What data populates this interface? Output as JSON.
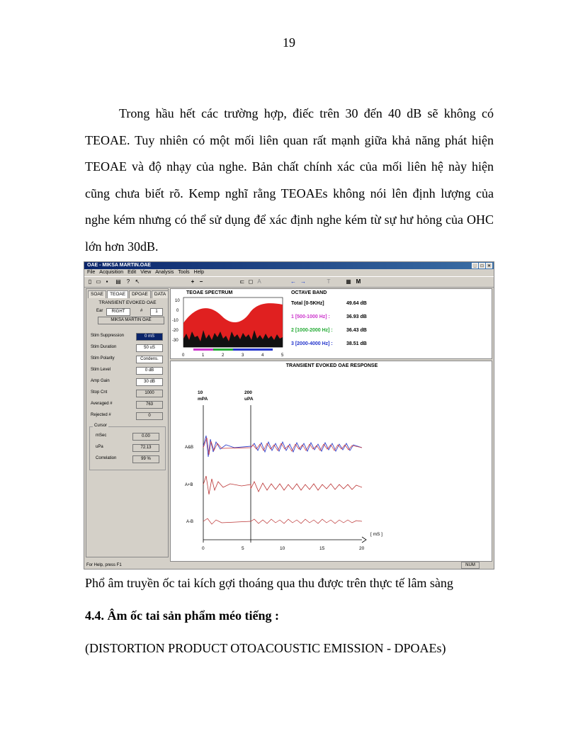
{
  "page_number": "19",
  "paragraph": "Trong hầu hết các trường hợp, điếc trên 30 đến 40 dB sẽ không có TEOAE. Tuy nhiên có một mối liên quan rất mạnh giữa khả năng phát hiện TEOAE và độ nhạy của nghe. Bản chất chính xác của mối liên hệ này hiện cũng chưa biết rõ. Kemp nghĩ rằng TEOAEs không nói lên định lượng của nghe kém nhưng có thể sử dụng để xác định nghe kém từ sự hư hỏng của OHC lớn hơn 30dB.",
  "screenshot": {
    "window_title": "OAE - MIKSA MARTIN.OAE",
    "menu": [
      "File",
      "Acquisition",
      "Edit",
      "View",
      "Analysis",
      "Tools",
      "Help"
    ],
    "tabs": [
      "SOAE",
      "TEOAE",
      "DPOAE",
      "DATA"
    ],
    "panel_title": "TRANSIENT EVOKED OAE",
    "ear_label": "Ear",
    "ear_value": "RIGHT",
    "hash_label": "#",
    "hash_value": "1",
    "patient_name": "MIKSA MARTIN OAE",
    "fields": [
      {
        "label": "Stim Suppression",
        "value": "0 mS",
        "selected": true
      },
      {
        "label": "Stim Duration",
        "value": "50 uS"
      },
      {
        "label": "Stim Polarity",
        "value": "Condens."
      },
      {
        "label": "Stim Level",
        "value": "0 dB"
      },
      {
        "label": "Amp Gain",
        "value": "30 dB"
      },
      {
        "label": "Stop Cnt",
        "value": "1000"
      },
      {
        "label": "Averaged #",
        "value": "763"
      },
      {
        "label": "Rejected #",
        "value": "0"
      }
    ],
    "cursor_group": "Cursor",
    "cursor_fields": [
      {
        "label": "mSec",
        "value": "0.00"
      },
      {
        "label": "uPa",
        "value": "72.13"
      },
      {
        "label": "Correlation",
        "value": "99 %"
      }
    ],
    "spectrum_title": "TEOAE SPECTRUM",
    "spectrum_y_ticks": [
      "10",
      "0",
      "-10",
      "-20",
      "-30"
    ],
    "spectrum_x_ticks": [
      "0",
      "1",
      "2",
      "3",
      "4",
      "5"
    ],
    "octave_title": "OCTAVE BAND",
    "octave_rows": [
      {
        "label": "Total [0-5KHz]",
        "value": "49.64 dB",
        "color": "#000000"
      },
      {
        "label": "1 [500-1000 Hz] :",
        "value": "36.93 dB",
        "color": "#cc33cc"
      },
      {
        "label": "2 [1000-2000 Hz] :",
        "value": "36.43 dB",
        "color": "#22aa33"
      },
      {
        "label": "3 [2000-4000 Hz] :",
        "value": "38.51 dB",
        "color": "#2233cc"
      }
    ],
    "response_title": "TRANSIENT EVOKED OAE RESPONSE",
    "scale_left": "10",
    "scale_left_unit": "mPA",
    "scale_right": "200",
    "scale_right_unit": "uPA",
    "trace_labels": [
      "A&B",
      "A+B",
      "A-B"
    ],
    "time_ticks": [
      "0",
      "5",
      "10",
      "15",
      "20"
    ],
    "time_unit": "[ mS ]",
    "status_text": "For Help, press F1",
    "status_num": "NUM"
  },
  "caption": "Phổ âm truyền ốc tai kích gợi thoáng qua thu được trên thực tế lâm sàng",
  "heading": "4.4. Âm ốc tai sản phẩm méo tiếng :",
  "subtitle": "(DISTORTION PRODUCT OTOACOUSTIC EMISSION - DPOAEs)"
}
